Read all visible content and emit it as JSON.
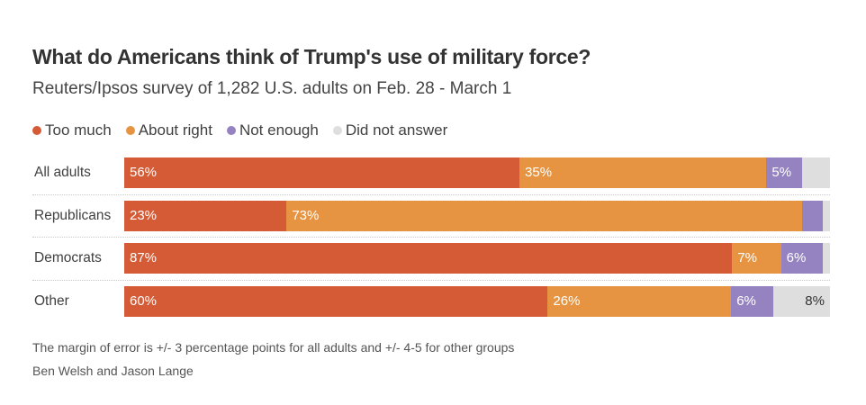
{
  "chart_data": {
    "type": "bar",
    "orientation": "horizontal",
    "stacked": true,
    "title": "What do Americans think of Trump's use of military force?",
    "subtitle": "Reuters/Ipsos survey of 1,282 U.S. adults on Feb. 28 - March 1",
    "xlabel": "",
    "ylabel": "",
    "xlim": [
      0,
      100
    ],
    "legend_position": "top-left",
    "categories": [
      "All adults",
      "Republicans",
      "Democrats",
      "Other"
    ],
    "series": [
      {
        "name": "Too much",
        "color": "#d45b36",
        "text_color": "#ffffff",
        "values": [
          56,
          23,
          87,
          60
        ],
        "labels": [
          "56%",
          "23%",
          "87%",
          "60%"
        ]
      },
      {
        "name": "About right",
        "color": "#e69441",
        "text_color": "#ffffff",
        "values": [
          35,
          73,
          7,
          26
        ],
        "labels": [
          "35%",
          "73%",
          "7%",
          "26%"
        ]
      },
      {
        "name": "Not enough",
        "color": "#9483c0",
        "text_color": "#ffffff",
        "values": [
          5,
          3,
          6,
          6
        ],
        "labels": [
          "5%",
          "",
          "6%",
          "6%"
        ]
      },
      {
        "name": "Did not answer",
        "color": "#dedede",
        "text_color": "#333333",
        "values": [
          4,
          1,
          1,
          8
        ],
        "labels": [
          "",
          "",
          "",
          "8%"
        ]
      }
    ]
  },
  "footer": {
    "note": "The margin of error is +/- 3 percentage points for all adults and +/- 4-5 for other groups",
    "byline": "Ben Welsh and Jason Lange"
  }
}
